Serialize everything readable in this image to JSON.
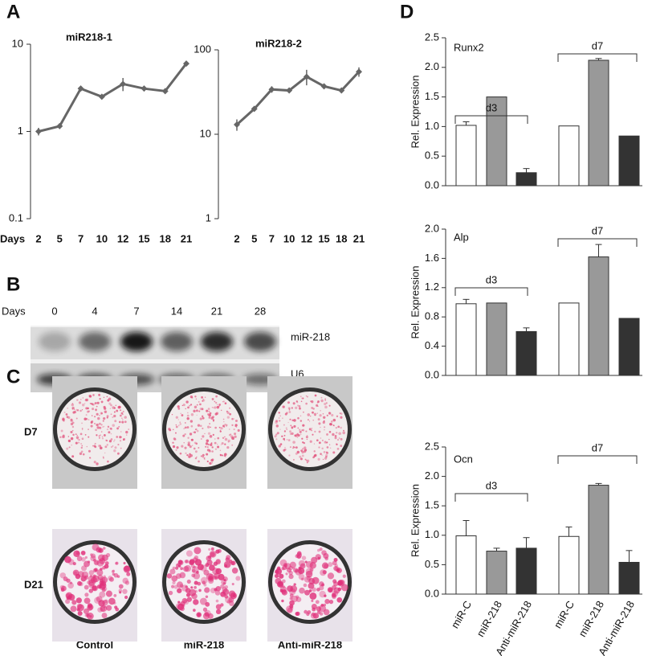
{
  "panels": [
    "A",
    "B",
    "C",
    "D"
  ],
  "chart_data": [
    {
      "type": "line",
      "title": "miR218-1",
      "xlabel": "Days",
      "log": true,
      "color": "#666666",
      "categories": [
        "2",
        "5",
        "7",
        "10",
        "12",
        "15",
        "18",
        "21"
      ],
      "values": [
        1.0,
        1.15,
        3.1,
        2.5,
        3.5,
        3.1,
        2.9,
        6.0
      ],
      "errors": [
        0.1,
        0.05,
        0.1,
        0.1,
        0.6,
        0.15,
        0.1,
        0.3
      ],
      "ylim": [
        0.1,
        10
      ],
      "yticks": [
        0.1,
        1,
        10
      ]
    },
    {
      "type": "line",
      "title": "miR218-2",
      "log": true,
      "color": "#666666",
      "categories": [
        "2",
        "5",
        "7",
        "10",
        "12",
        "15",
        "18",
        "21"
      ],
      "values": [
        13,
        20,
        34,
        33,
        48,
        37,
        33,
        55
      ],
      "errors": [
        2,
        1,
        3,
        1,
        10,
        2,
        2,
        7
      ],
      "ylim": [
        1,
        100
      ],
      "yticks": [
        1,
        10,
        100
      ]
    },
    {
      "type": "bar",
      "title": "Runx2",
      "ylabel": "Rel. Expression",
      "groups": [
        "d3",
        "d7"
      ],
      "colors": [
        "#ffffff",
        "#999999",
        "#333333",
        "#ffffff",
        "#999999",
        "#333333"
      ],
      "values": [
        1.02,
        1.5,
        0.22,
        1.01,
        2.12,
        0.84
      ],
      "errors": [
        0.06,
        0,
        0.07,
        0,
        0.03,
        0
      ],
      "ylim": [
        0,
        2.5
      ],
      "yticks": [
        {
          "value": 0,
          "label": "0.0"
        },
        {
          "value": 0.5,
          "label": "0.5"
        },
        {
          "value": 1,
          "label": "1.0"
        },
        {
          "value": 1.5,
          "label": "1.5"
        },
        {
          "value": 2,
          "label": "2.0"
        },
        {
          "value": 2.5,
          "label": "2.5"
        }
      ]
    },
    {
      "type": "bar",
      "title": "Alp",
      "ylabel": "Rel. Expression",
      "groups": [
        "d3",
        "d7"
      ],
      "colors": [
        "#ffffff",
        "#999999",
        "#333333",
        "#ffffff",
        "#999999",
        "#333333"
      ],
      "values": [
        0.98,
        0.99,
        0.6,
        0.99,
        1.62,
        0.78
      ],
      "errors": [
        0.06,
        0,
        0.05,
        0,
        0.17,
        0
      ],
      "ylim": [
        0,
        2.0
      ],
      "yticks": [
        {
          "value": 0,
          "label": "0.0"
        },
        {
          "value": 0.4,
          "label": "0.4"
        },
        {
          "value": 0.8,
          "label": "0.8"
        },
        {
          "value": 1.2,
          "label": "1.2"
        },
        {
          "value": 1.6,
          "label": "1.6"
        },
        {
          "value": 2,
          "label": "2.0"
        }
      ]
    },
    {
      "type": "bar",
      "title": "Ocn",
      "ylabel": "Rel. Expression",
      "groups": [
        "d3",
        "d7"
      ],
      "categories": [
        "miR-C",
        "miR-218",
        "Anti-miR-218",
        "miR-C",
        "miR-218",
        "Anti-miR-218"
      ],
      "colors": [
        "#ffffff",
        "#999999",
        "#333333",
        "#ffffff",
        "#999999",
        "#333333"
      ],
      "values": [
        0.99,
        0.73,
        0.78,
        0.98,
        1.85,
        0.54
      ],
      "errors": [
        0.26,
        0.05,
        0.18,
        0.16,
        0.03,
        0.2
      ],
      "ylim": [
        0,
        2.5
      ],
      "yticks": [
        {
          "value": 0,
          "label": "0.0"
        },
        {
          "value": 0.5,
          "label": "0.5"
        },
        {
          "value": 1,
          "label": "1.0"
        },
        {
          "value": 1.5,
          "label": "1.5"
        },
        {
          "value": 2,
          "label": "2.0"
        },
        {
          "value": 2.5,
          "label": "2.5"
        }
      ]
    }
  ],
  "blot": {
    "label": "Days",
    "lanes": [
      "0",
      "4",
      "7",
      "14",
      "21",
      "28"
    ],
    "rows": [
      "miR-218",
      "U6"
    ]
  },
  "staining": {
    "rows": [
      "D7",
      "D21"
    ],
    "columns": [
      "Control",
      "miR-218",
      "Anti-miR-218"
    ]
  }
}
